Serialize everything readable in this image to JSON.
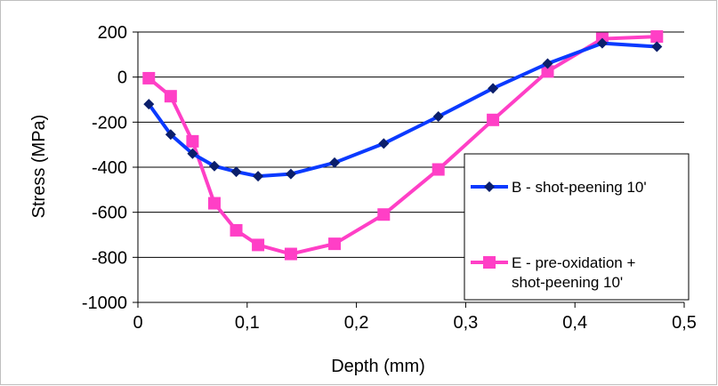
{
  "chart_data": {
    "type": "line",
    "title": "",
    "xlabel": "Depth (mm)",
    "ylabel": "Stress (MPa)",
    "xlim": [
      0,
      0.5
    ],
    "ylim": [
      -1000,
      200
    ],
    "x_ticks": [
      "0",
      "0,1",
      "0,2",
      "0,3",
      "0,4",
      "0,5"
    ],
    "y_ticks": [
      "200",
      "0",
      "-200",
      "-400",
      "-600",
      "-800",
      "-1000"
    ],
    "grid": "horizontal",
    "legend_position": "right",
    "series": [
      {
        "name": "B - shot-peening 10'",
        "color": "#0a3aff",
        "marker": "diamond",
        "x": [
          0.01,
          0.03,
          0.05,
          0.07,
          0.09,
          0.11,
          0.14,
          0.18,
          0.225,
          0.275,
          0.325,
          0.375,
          0.425,
          0.475
        ],
        "y": [
          -120,
          -255,
          -340,
          -395,
          -420,
          -440,
          -430,
          -380,
          -295,
          -175,
          -50,
          60,
          150,
          135
        ]
      },
      {
        "name": "E - pre-oxidation + shot-peening 10'",
        "name_lines": [
          "E - pre-oxidation +",
          "shot-peening 10'"
        ],
        "color": "#ff3fc6",
        "marker": "square",
        "x": [
          0.01,
          0.03,
          0.05,
          0.07,
          0.09,
          0.11,
          0.14,
          0.18,
          0.225,
          0.275,
          0.325,
          0.375,
          0.425,
          0.475
        ],
        "y": [
          -5,
          -85,
          -285,
          -560,
          -680,
          -745,
          -785,
          -740,
          -610,
          -410,
          -190,
          25,
          170,
          180
        ]
      }
    ]
  }
}
